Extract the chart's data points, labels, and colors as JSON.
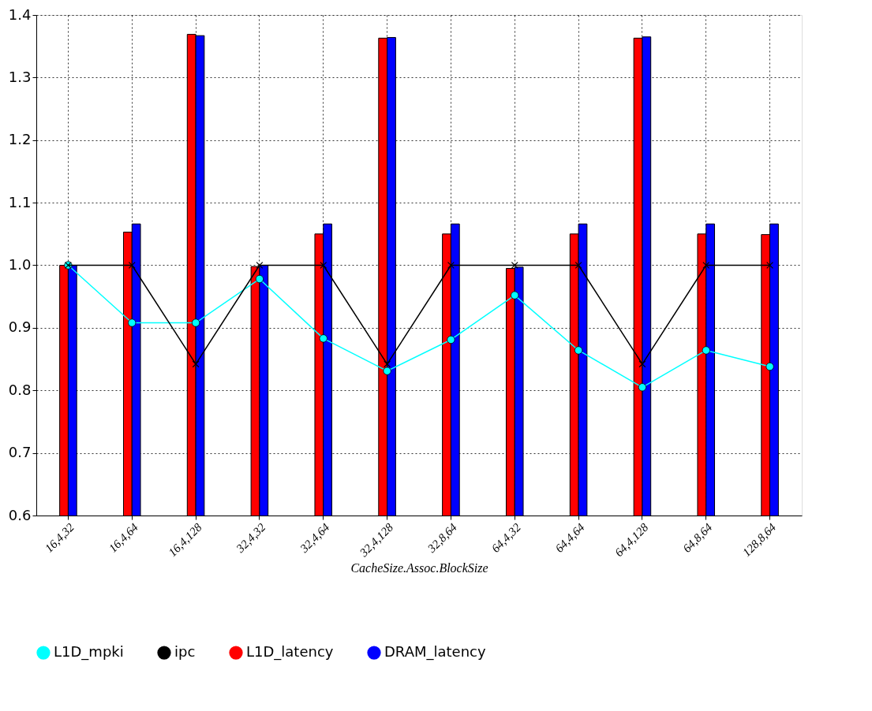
{
  "chart_data": {
    "type": "bar",
    "xlabel": "CacheSize.Assoc.BlockSize",
    "categories": [
      "16,4,32",
      "16,4,64",
      "16,4,128",
      "32,4,32",
      "32,4,64",
      "32,4,128",
      "32,8,64",
      "64,4,32",
      "64,4,64",
      "64,4,128",
      "64,8,64",
      "128,8,64"
    ],
    "series": [
      {
        "name": "L1D_mpki",
        "type": "line",
        "marker": "circle",
        "color": "#00ffff",
        "values": [
          1.0,
          0.908,
          0.908,
          0.978,
          0.883,
          0.831,
          0.881,
          0.952,
          0.864,
          0.805,
          0.864,
          0.838
        ]
      },
      {
        "name": "ipc",
        "type": "line",
        "marker": "cross",
        "color": "#000000",
        "values": [
          1.0,
          1.0,
          0.842,
          1.0,
          1.0,
          0.842,
          1.0,
          1.0,
          1.0,
          0.842,
          1.0,
          1.0
        ]
      },
      {
        "name": "L1D_latency",
        "color": "#ff0000",
        "values": [
          1.0,
          1.053,
          1.369,
          0.998,
          1.05,
          1.363,
          1.05,
          0.995,
          1.05,
          1.363,
          1.05,
          1.049
        ]
      },
      {
        "name": "DRAM_latency",
        "color": "#0000ff",
        "values": [
          1.0,
          1.066,
          1.367,
          1.0,
          1.066,
          1.364,
          1.066,
          0.997,
          1.066,
          1.365,
          1.066,
          1.066
        ]
      }
    ],
    "ylim": [
      0.6,
      1.4
    ],
    "yticks": [
      0.6,
      0.7,
      0.8,
      0.9,
      {
        "value": 1,
        "label": "1.0"
      },
      1.1,
      1.2,
      1.3,
      1.4
    ],
    "grid": true,
    "legend": "bottom"
  }
}
